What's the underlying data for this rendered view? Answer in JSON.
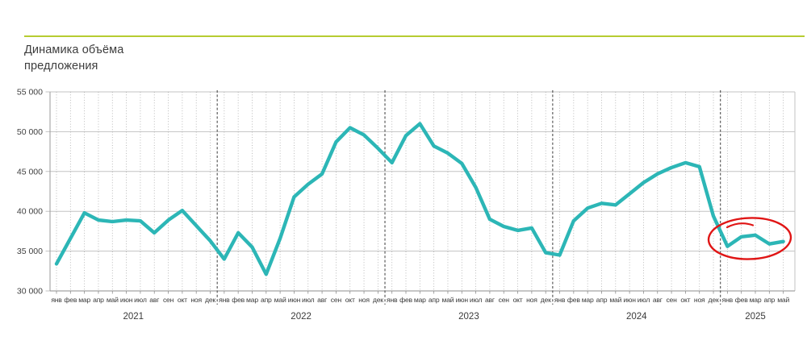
{
  "header": {
    "title_line1": "Динамика объёма",
    "title_line2": "предложения",
    "accent_rule_color": "#b6cc31"
  },
  "chart_data": {
    "type": "line",
    "title": "Динамика объёма предложения",
    "line_color": "#2cb6b6",
    "annotation_color": "#e01515",
    "grid": {
      "horizontal": "solid",
      "vertical_monthly": "dotted",
      "year_separators": "dashed"
    },
    "ylim": [
      30000,
      55000
    ],
    "ytick_step": 5000,
    "ytick_labels": [
      "55 000",
      "50 000",
      "45 000",
      "40 000",
      "35 000",
      "30 000"
    ],
    "month_labels": [
      "янв",
      "фев",
      "мар",
      "апр",
      "май",
      "июн",
      "июл",
      "авг",
      "сен",
      "окт",
      "ноя",
      "дек"
    ],
    "years": [
      "2021",
      "2022",
      "2023",
      "2024",
      "2025"
    ],
    "series": [
      {
        "name": "объём предложения",
        "values_by_year": {
          "2021": [
            33400,
            36600,
            39800,
            38900,
            38700,
            38900,
            38800,
            37300,
            38900,
            40100,
            38200,
            36300
          ],
          "2022": [
            34000,
            37300,
            35500,
            32100,
            36600,
            41800,
            43400,
            44700,
            48700,
            50500,
            49600,
            47900
          ],
          "2023": [
            46100,
            49500,
            51000,
            48200,
            47300,
            46000,
            43000,
            39000,
            38100,
            37600,
            37900,
            34800
          ],
          "2024": [
            34500,
            38800,
            40400,
            41000,
            40800,
            42200,
            43600,
            44700,
            45500,
            46100,
            45600,
            39400
          ],
          "2025": [
            35600,
            36800,
            37000,
            35900,
            36200
          ]
        }
      }
    ],
    "annotation": {
      "type": "hand-drawn-ellipse",
      "circled_points": [
        "янв 2025",
        "фев 2025",
        "мар 2025",
        "апр 2025",
        "май 2025"
      ]
    }
  }
}
